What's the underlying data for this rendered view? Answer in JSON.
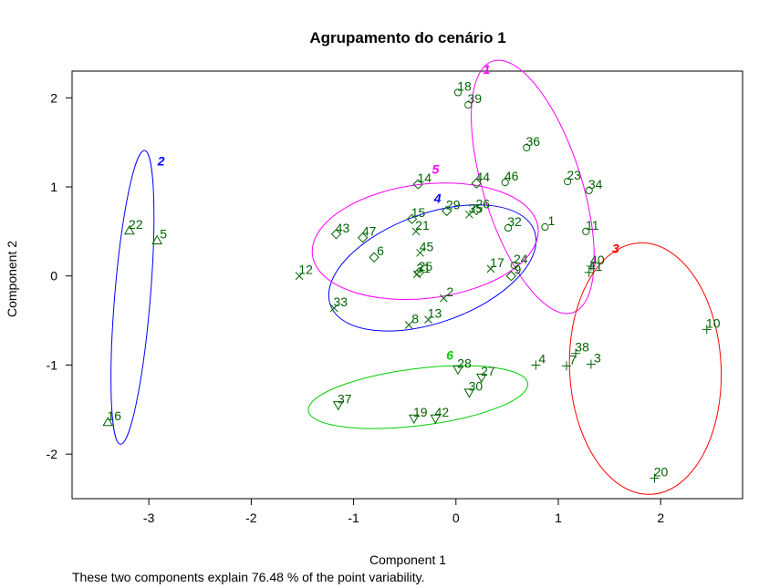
{
  "chart_data": {
    "type": "scatter",
    "title": "Agrupamento do cenário 1",
    "xlabel": "Component 1",
    "ylabel": "Component 2",
    "subtitle": "These two components explain 76.48 % of the point variability.",
    "xlim": [
      -3.75,
      2.8
    ],
    "ylim": [
      -2.5,
      2.3
    ],
    "xticks": [
      -3,
      -2,
      -1,
      0,
      1,
      2
    ],
    "yticks": [
      -2,
      -1,
      0,
      1,
      2
    ],
    "grid": false,
    "legend": "none",
    "point_color": "#006400",
    "points": [
      {
        "label": "1",
        "x": 0.87,
        "y": 0.55,
        "cluster": 1
      },
      {
        "label": "2",
        "x": -0.12,
        "y": -0.25,
        "cluster": 4
      },
      {
        "label": "3",
        "x": 1.32,
        "y": -0.99,
        "cluster": 3
      },
      {
        "label": "4",
        "x": 0.78,
        "y": -1.0,
        "cluster": 3
      },
      {
        "label": "5",
        "x": -2.92,
        "y": 0.4,
        "cluster": 2
      },
      {
        "label": "6",
        "x": -0.8,
        "y": 0.21,
        "cluster": 5
      },
      {
        "label": "7",
        "x": 1.08,
        "y": -1.01,
        "cluster": 3
      },
      {
        "label": "8",
        "x": -0.46,
        "y": -0.55,
        "cluster": 4
      },
      {
        "label": "9",
        "x": 0.54,
        "y": 0.0,
        "cluster": 5
      },
      {
        "label": "10",
        "x": 2.45,
        "y": -0.6,
        "cluster": 3
      },
      {
        "label": "11",
        "x": 1.27,
        "y": 0.5,
        "cluster": 1
      },
      {
        "label": "12",
        "x": -1.53,
        "y": 0.0,
        "cluster": 4
      },
      {
        "label": "13",
        "x": -0.27,
        "y": -0.49,
        "cluster": 4
      },
      {
        "label": "14",
        "x": -0.37,
        "y": 1.03,
        "cluster": 5
      },
      {
        "label": "15",
        "x": -0.43,
        "y": 0.64,
        "cluster": 5
      },
      {
        "label": "16",
        "x": -3.4,
        "y": -1.64,
        "cluster": 2
      },
      {
        "label": "17",
        "x": 0.34,
        "y": 0.08,
        "cluster": 4
      },
      {
        "label": "18",
        "x": 0.02,
        "y": 2.06,
        "cluster": 1
      },
      {
        "label": "19",
        "x": -0.41,
        "y": -1.6,
        "cluster": 6
      },
      {
        "label": "20",
        "x": 1.94,
        "y": -2.27,
        "cluster": 3
      },
      {
        "label": "21",
        "x": -0.39,
        "y": 0.5,
        "cluster": 4
      },
      {
        "label": "22",
        "x": -3.19,
        "y": 0.51,
        "cluster": 2
      },
      {
        "label": "23",
        "x": 1.09,
        "y": 1.06,
        "cluster": 1
      },
      {
        "label": "24",
        "x": 0.57,
        "y": 0.12,
        "cluster": 1
      },
      {
        "label": "25",
        "x": -0.36,
        "y": 0.04,
        "cluster": 5
      },
      {
        "label": "26",
        "x": 0.2,
        "y": 0.74,
        "cluster": 5
      },
      {
        "label": "27",
        "x": 0.25,
        "y": -1.14,
        "cluster": 6
      },
      {
        "label": "28",
        "x": 0.02,
        "y": -1.05,
        "cluster": 6
      },
      {
        "label": "29",
        "x": -0.09,
        "y": 0.73,
        "cluster": 5
      },
      {
        "label": "30",
        "x": 0.13,
        "y": -1.31,
        "cluster": 6
      },
      {
        "label": "31",
        "x": -0.38,
        "y": 0.02,
        "cluster": 4
      },
      {
        "label": "32",
        "x": 0.51,
        "y": 0.54,
        "cluster": 1
      },
      {
        "label": "33",
        "x": -1.19,
        "y": -0.36,
        "cluster": 4
      },
      {
        "label": "34",
        "x": 1.3,
        "y": 0.96,
        "cluster": 1
      },
      {
        "label": "35",
        "x": 0.13,
        "y": 0.69,
        "cluster": 4
      },
      {
        "label": "36",
        "x": 0.69,
        "y": 1.44,
        "cluster": 1
      },
      {
        "label": "37",
        "x": -1.15,
        "y": -1.45,
        "cluster": 6
      },
      {
        "label": "38",
        "x": 1.17,
        "y": -0.87,
        "cluster": 3
      },
      {
        "label": "39",
        "x": 0.12,
        "y": 1.92,
        "cluster": 1
      },
      {
        "label": "40",
        "x": 1.32,
        "y": 0.11,
        "cluster": 3
      },
      {
        "label": "41",
        "x": 1.3,
        "y": 0.04,
        "cluster": 3
      },
      {
        "label": "42",
        "x": -0.2,
        "y": -1.6,
        "cluster": 6
      },
      {
        "label": "43",
        "x": -1.17,
        "y": 0.47,
        "cluster": 5
      },
      {
        "label": "44",
        "x": 0.2,
        "y": 1.04,
        "cluster": 5
      },
      {
        "label": "45",
        "x": -0.35,
        "y": 0.26,
        "cluster": 4
      },
      {
        "label": "46",
        "x": 0.48,
        "y": 1.05,
        "cluster": 1
      },
      {
        "label": "47",
        "x": -0.91,
        "y": 0.43,
        "cluster": 5
      }
    ],
    "clusters": [
      {
        "id": "1",
        "color": "#ff00ff",
        "symbol": "circle",
        "center": [
          0.75,
          1.0
        ],
        "a": 1.29,
        "b": 0.55,
        "angle": -107.6,
        "label_pos": [
          0.3,
          2.27
        ]
      },
      {
        "id": "2",
        "color": "#0000ff",
        "symbol": "triangle",
        "center": [
          -3.16,
          -0.24
        ],
        "a": 1.44,
        "b": 0.2,
        "angle": -85.3,
        "label_pos": [
          -2.88,
          1.24
        ]
      },
      {
        "id": "3",
        "color": "#ff0000",
        "symbol": "plus",
        "center": [
          1.85,
          -1.04
        ],
        "a": 1.23,
        "b": 0.85,
        "angle": -92.6,
        "label_pos": [
          1.56,
          0.26
        ]
      },
      {
        "id": "4",
        "color": "#0000ff",
        "symbol": "cross",
        "center": [
          -0.23,
          0.09
        ],
        "a": 1.06,
        "b": 0.61,
        "angle": -20.0,
        "label_pos": [
          -0.18,
          0.82
        ]
      },
      {
        "id": "5",
        "color": "#ff00ff",
        "symbol": "diamond",
        "center": [
          -0.3,
          0.39
        ],
        "a": 1.11,
        "b": 0.64,
        "angle": -6.9,
        "label_pos": [
          -0.2,
          1.15
        ]
      },
      {
        "id": "6",
        "color": "#00cc00",
        "symbol": "triangle-down",
        "center": [
          -0.37,
          -1.36
        ],
        "a": 1.08,
        "b": 0.32,
        "angle": -7.1,
        "label_pos": [
          -0.06,
          -0.94
        ]
      }
    ]
  }
}
